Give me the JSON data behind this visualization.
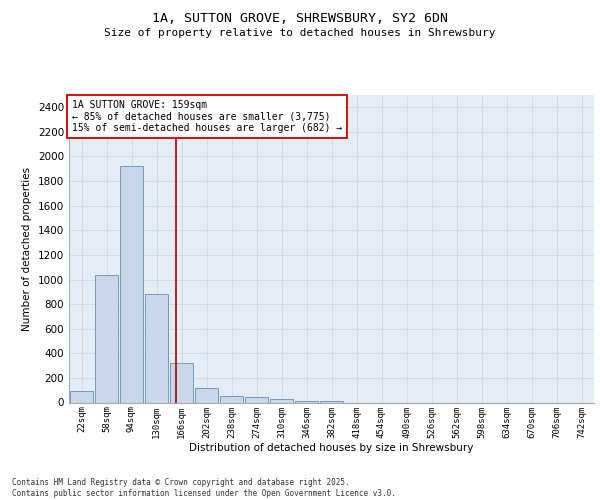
{
  "title_line1": "1A, SUTTON GROVE, SHREWSBURY, SY2 6DN",
  "title_line2": "Size of property relative to detached houses in Shrewsbury",
  "xlabel": "Distribution of detached houses by size in Shrewsbury",
  "ylabel": "Number of detached properties",
  "bar_categories": [
    "22sqm",
    "58sqm",
    "94sqm",
    "130sqm",
    "166sqm",
    "202sqm",
    "238sqm",
    "274sqm",
    "310sqm",
    "346sqm",
    "382sqm",
    "418sqm",
    "454sqm",
    "490sqm",
    "526sqm",
    "562sqm",
    "598sqm",
    "634sqm",
    "670sqm",
    "706sqm",
    "742sqm"
  ],
  "bar_values": [
    90,
    1035,
    1925,
    880,
    325,
    120,
    55,
    45,
    30,
    15,
    10,
    0,
    0,
    0,
    0,
    0,
    0,
    0,
    0,
    0,
    0
  ],
  "bar_color": "#c8d8ea",
  "bar_edge_color": "#6090b8",
  "vline_color": "#aa0000",
  "annotation_text": "1A SUTTON GROVE: 159sqm\n← 85% of detached houses are smaller (3,775)\n15% of semi-detached houses are larger (682) →",
  "annotation_box_color": "#ffffff",
  "annotation_box_edge": "#cc0000",
  "ylim": [
    0,
    2500
  ],
  "yticks": [
    0,
    200,
    400,
    600,
    800,
    1000,
    1200,
    1400,
    1600,
    1800,
    2000,
    2200,
    2400
  ],
  "grid_color": "#c8d4e4",
  "background_color": "#e4ecf6",
  "footer_line1": "Contains HM Land Registry data © Crown copyright and database right 2025.",
  "footer_line2": "Contains public sector information licensed under the Open Government Licence v3.0."
}
